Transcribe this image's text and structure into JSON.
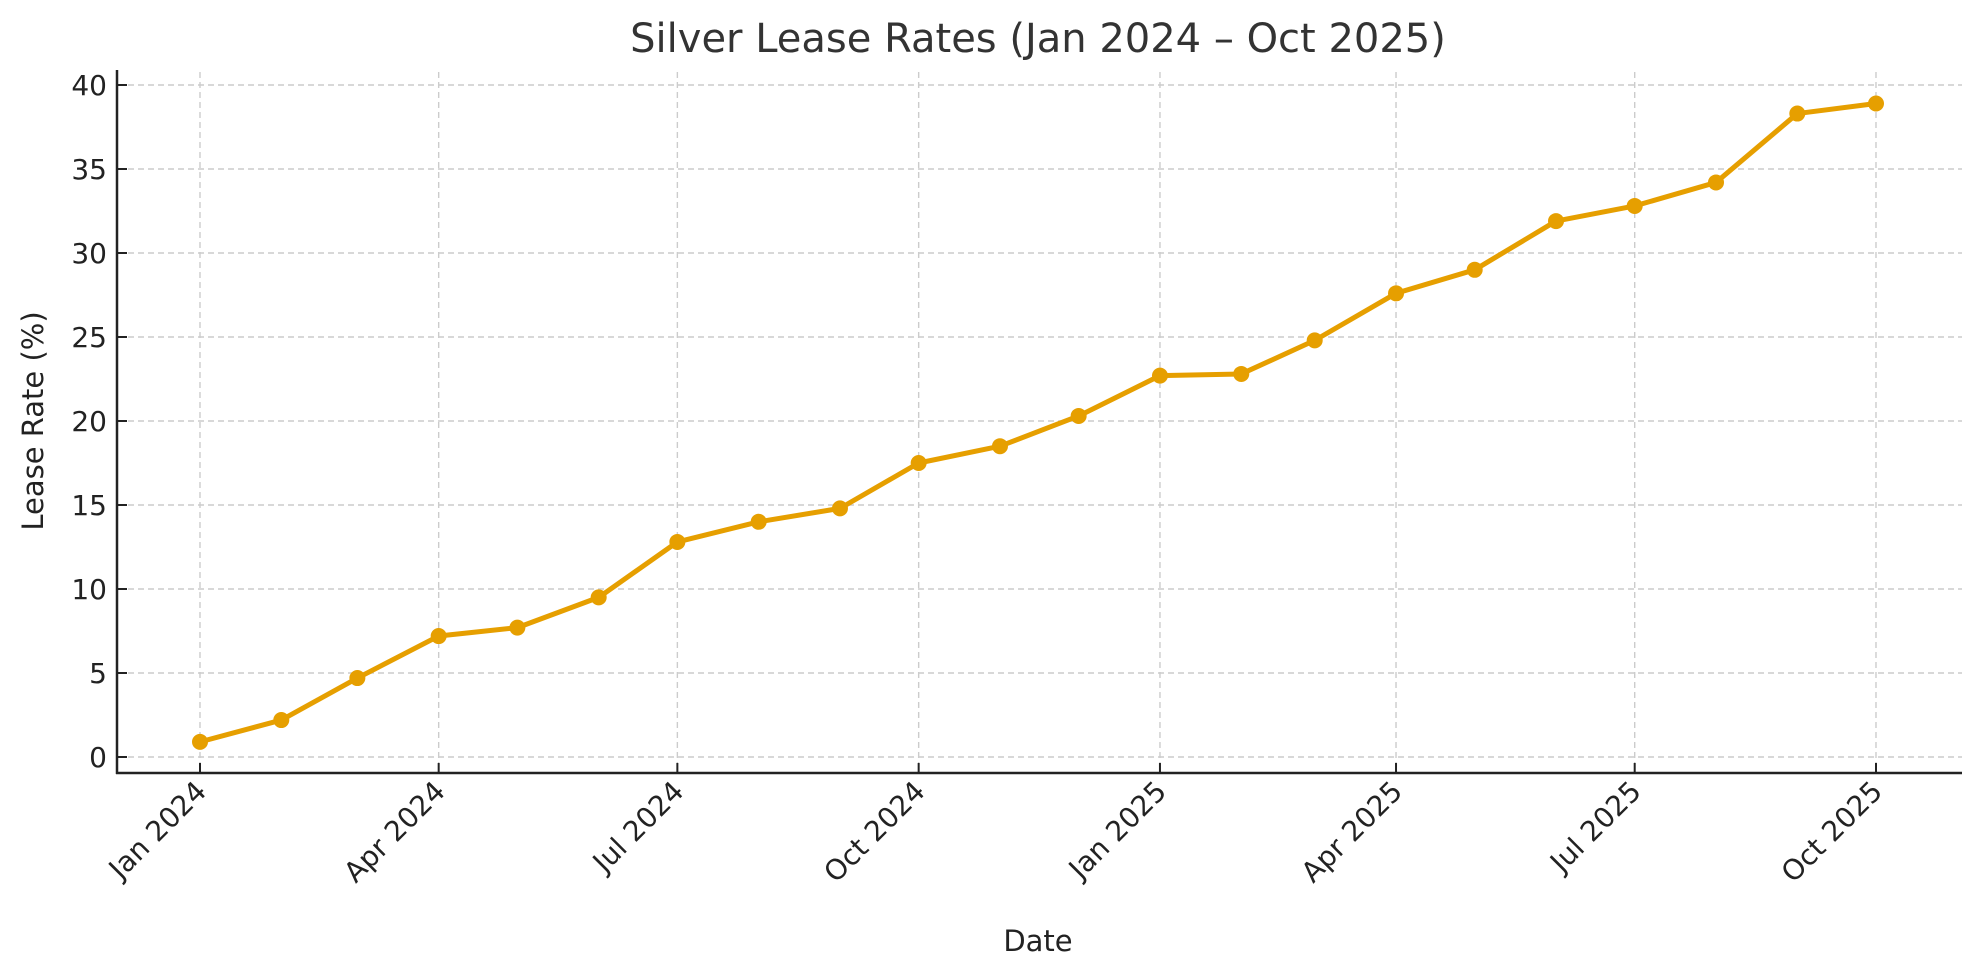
{
  "chart_data": {
    "type": "line",
    "title": "Silver Lease Rates (Jan 2024 – Oct 2025)",
    "xlabel": "Date",
    "ylabel": "Lease Rate (%)",
    "ylim": [
      0,
      40
    ],
    "yticks": [
      0,
      5,
      10,
      15,
      20,
      25,
      30,
      35,
      40
    ],
    "grid": true,
    "legend": null,
    "line_color": "#E69F00",
    "x": [
      "Jan 2024",
      "Feb 2024",
      "Mar 2024",
      "Apr 2024",
      "May 2024",
      "Jun 2024",
      "Jul 2024",
      "Aug 2024",
      "Sep 2024",
      "Oct 2024",
      "Nov 2024",
      "Dec 2024",
      "Jan 2025",
      "Feb 2025",
      "Mar 2025",
      "Apr 2025",
      "May 2025",
      "Jun 2025",
      "Jul 2025",
      "Aug 2025",
      "Sep 2025",
      "Oct 2025"
    ],
    "x_day_offsets": [
      0,
      31,
      60,
      91,
      121,
      152,
      182,
      213,
      244,
      274,
      305,
      335,
      366,
      397,
      425,
      456,
      486,
      517,
      547,
      578,
      609,
      639
    ],
    "series": [
      {
        "name": "Lease Rate",
        "values": [
          0.9,
          2.2,
          4.7,
          7.2,
          7.7,
          9.5,
          12.8,
          14.0,
          14.8,
          17.5,
          18.5,
          20.3,
          22.7,
          22.8,
          24.8,
          27.6,
          29.0,
          31.9,
          32.8,
          34.2,
          38.3,
          38.9
        ]
      }
    ],
    "xticks": [
      {
        "label": "Jan 2024",
        "day": 0
      },
      {
        "label": "Apr 2024",
        "day": 91
      },
      {
        "label": "Jul 2024",
        "day": 182
      },
      {
        "label": "Oct 2024",
        "day": 274
      },
      {
        "label": "Jan 2025",
        "day": 366
      },
      {
        "label": "Apr 2025",
        "day": 456
      },
      {
        "label": "Jul 2025",
        "day": 547
      },
      {
        "label": "Oct 2025",
        "day": 639
      }
    ]
  }
}
